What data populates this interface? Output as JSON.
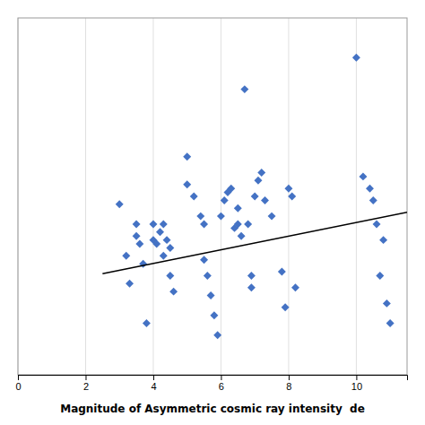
{
  "chart_data": {
    "type": "scatter",
    "xlabel": "Magnitude of Asymmetric cosmic ray intensity  de",
    "series": [
      {
        "type": "scatter",
        "color": "#4472C4",
        "marker": "diamond",
        "x": [
          3.0,
          3.2,
          3.3,
          3.5,
          3.5,
          3.6,
          3.7,
          3.8,
          4.0,
          4.0,
          4.1,
          4.2,
          4.3,
          4.3,
          4.4,
          4.5,
          4.5,
          4.6,
          5.0,
          5.0,
          5.2,
          5.4,
          5.5,
          5.5,
          5.6,
          5.7,
          5.8,
          5.9,
          6.0,
          6.1,
          6.2,
          6.3,
          6.4,
          6.5,
          6.5,
          6.6,
          6.7,
          6.8,
          6.9,
          6.9,
          7.0,
          7.1,
          7.2,
          7.3,
          7.5,
          7.8,
          7.9,
          8.0,
          8.1,
          8.2,
          10.0,
          10.2,
          10.4,
          10.5,
          10.6,
          10.7,
          10.8,
          10.9,
          11.0
        ],
        "values": [
          6.3,
          5.0,
          4.3,
          5.8,
          5.5,
          5.3,
          4.8,
          3.3,
          5.8,
          5.4,
          5.3,
          5.6,
          5.0,
          5.8,
          5.4,
          4.5,
          5.2,
          4.1,
          7.5,
          6.8,
          6.5,
          6.0,
          5.8,
          4.9,
          4.5,
          4.0,
          3.5,
          3.0,
          6.0,
          6.4,
          6.6,
          6.7,
          5.7,
          6.2,
          5.8,
          5.5,
          9.2,
          5.8,
          4.5,
          4.2,
          6.5,
          6.9,
          7.1,
          6.4,
          6.0,
          4.6,
          3.7,
          6.7,
          6.5,
          4.2,
          10.0,
          7.0,
          6.7,
          6.4,
          5.8,
          4.5,
          5.4,
          3.8,
          3.3
        ]
      },
      {
        "type": "line",
        "color": "black",
        "x": [
          2.5,
          11.5
        ],
        "values": [
          4.55,
          6.1
        ]
      }
    ],
    "xlim": [
      0,
      11.5
    ],
    "ylim": [
      2.0,
      11.0
    ],
    "xticks": [
      0,
      2,
      4,
      6,
      8,
      10
    ],
    "tick_labels": "x",
    "grid": true
  }
}
